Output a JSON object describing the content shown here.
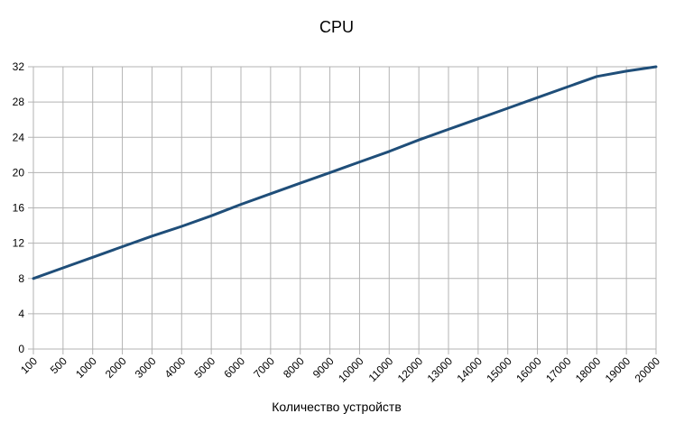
{
  "chart_data": {
    "type": "line",
    "title": "CPU",
    "xlabel": "Количество устройств",
    "ylabel": "",
    "categories": [
      "100",
      "500",
      "1000",
      "2000",
      "3000",
      "4000",
      "5000",
      "6000",
      "7000",
      "8000",
      "9000",
      "10000",
      "11000",
      "12000",
      "13000",
      "14000",
      "15000",
      "16000",
      "17000",
      "18000",
      "19000",
      "20000"
    ],
    "series": [
      {
        "values": [
          8.0,
          9.2,
          10.4,
          11.6,
          12.8,
          13.9,
          15.1,
          16.4,
          17.6,
          18.8,
          20.0,
          21.2,
          22.4,
          23.7,
          24.9,
          26.1,
          27.3,
          28.5,
          29.7,
          30.9,
          31.5,
          32.0
        ],
        "color": "#1F4E79"
      }
    ],
    "ylim": [
      0,
      32
    ],
    "yticks": [
      0,
      4,
      8,
      12,
      16,
      20,
      24,
      28,
      32
    ],
    "grid": true,
    "legend": "none"
  }
}
